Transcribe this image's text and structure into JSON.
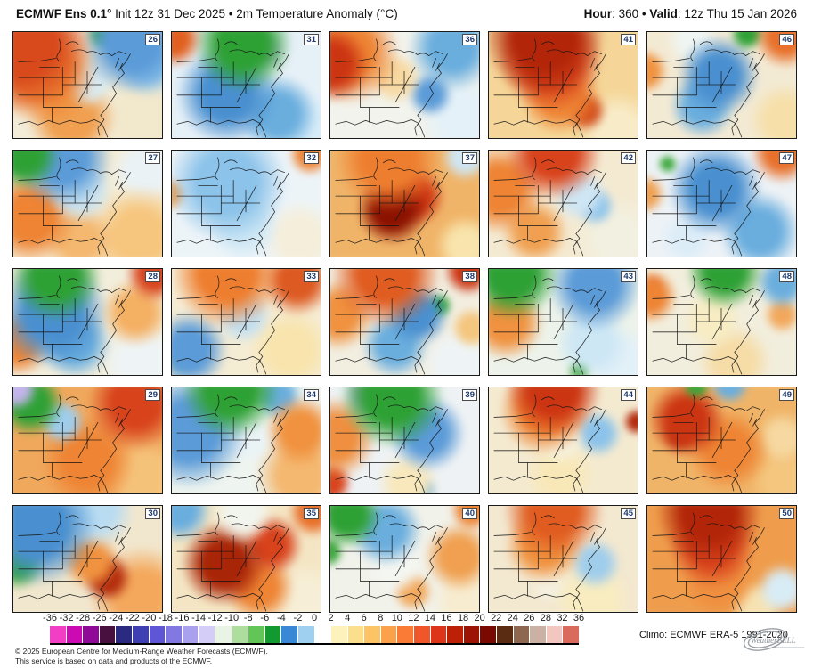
{
  "header": {
    "title_bold": "ECMWF Ens 0.1°",
    "title_rest": " Init 12z 31 Dec 2025 • 2m Temperature Anomaly (°C)",
    "hour_label": "Hour",
    "hour_sep1": ": ",
    "hour_value": "360",
    "bullet": " • ",
    "valid_label": "Valid",
    "valid_sep": ": ",
    "valid_value": "12z Thu 15 Jan 2026"
  },
  "members": [
    {
      "num": "26",
      "base": "#f2ecd8",
      "blobs": [
        [
          8,
          12,
          40,
          "#d8491c"
        ],
        [
          22,
          38,
          38,
          "#ee8434"
        ],
        [
          78,
          14,
          32,
          "#5b9bd8"
        ],
        [
          60,
          6,
          12,
          "#2ea135"
        ],
        [
          88,
          30,
          22,
          "#8cc3ea"
        ],
        [
          50,
          48,
          26,
          "#d9ecf4"
        ],
        [
          40,
          78,
          34,
          "#f0a050"
        ],
        [
          86,
          78,
          30,
          "#f2e8cc"
        ]
      ]
    },
    {
      "num": "31",
      "base": "#e6f0f7",
      "blobs": [
        [
          4,
          10,
          16,
          "#e2601f"
        ],
        [
          48,
          14,
          38,
          "#2ea135"
        ],
        [
          62,
          20,
          14,
          "#c3b4ec"
        ],
        [
          38,
          58,
          42,
          "#4a90d0"
        ],
        [
          70,
          75,
          28,
          "#6aaede"
        ],
        [
          86,
          88,
          24,
          "#d7ecf8"
        ]
      ]
    },
    {
      "num": "36",
      "base": "#f2f3ec",
      "blobs": [
        [
          4,
          32,
          22,
          "#cc3512"
        ],
        [
          14,
          22,
          32,
          "#ee8434"
        ],
        [
          44,
          44,
          24,
          "#f7d9a2"
        ],
        [
          80,
          18,
          28,
          "#6aaede"
        ],
        [
          66,
          58,
          18,
          "#5b9bd8"
        ],
        [
          88,
          80,
          28,
          "#e4f1f8"
        ]
      ]
    },
    {
      "num": "41",
      "base": "#f5d698",
      "blobs": [
        [
          38,
          8,
          42,
          "#b22508"
        ],
        [
          42,
          28,
          42,
          "#d8431c"
        ],
        [
          48,
          58,
          38,
          "#ee8434"
        ],
        [
          64,
          72,
          16,
          "#d04a1a"
        ],
        [
          84,
          90,
          24,
          "#f8ecc8"
        ]
      ]
    },
    {
      "num": "46",
      "base": "#f3ead4",
      "blobs": [
        [
          90,
          8,
          18,
          "#e8702a"
        ],
        [
          2,
          38,
          13,
          "#f0923f"
        ],
        [
          66,
          6,
          11,
          "#2ea135"
        ],
        [
          48,
          42,
          38,
          "#4a90d0"
        ],
        [
          38,
          68,
          26,
          "#6aaede"
        ],
        [
          90,
          80,
          22,
          "#f6dfa8"
        ],
        [
          32,
          12,
          18,
          "#eff5f2"
        ]
      ]
    },
    {
      "num": "27",
      "base": "#f5ecd4",
      "blobs": [
        [
          10,
          8,
          20,
          "#2ea135"
        ],
        [
          34,
          10,
          34,
          "#5b9bd8"
        ],
        [
          45,
          38,
          30,
          "#c8e2f0"
        ],
        [
          14,
          62,
          30,
          "#ee8434"
        ],
        [
          45,
          82,
          28,
          "#f4b870"
        ],
        [
          82,
          78,
          32,
          "#f6c67e"
        ],
        [
          86,
          22,
          22,
          "#eaf2f6"
        ]
      ]
    },
    {
      "num": "32",
      "base": "#edf4f8",
      "blobs": [
        [
          38,
          32,
          48,
          "#8cc3ea"
        ],
        [
          48,
          68,
          32,
          "#cfe8f5"
        ],
        [
          90,
          8,
          12,
          "#ee8434"
        ],
        [
          2,
          42,
          10,
          "#f0a050"
        ],
        [
          84,
          80,
          24,
          "#f5eeda"
        ]
      ]
    },
    {
      "num": "37",
      "base": "#f0b468",
      "blobs": [
        [
          40,
          12,
          38,
          "#ee7e2f"
        ],
        [
          42,
          55,
          32,
          "#8c1200"
        ],
        [
          56,
          44,
          28,
          "#cc3512"
        ],
        [
          88,
          10,
          14,
          "#cfe6f4"
        ],
        [
          88,
          86,
          18,
          "#f8e4ac"
        ]
      ]
    },
    {
      "num": "42",
      "base": "#f4ead2",
      "blobs": [
        [
          44,
          6,
          34,
          "#d8431c"
        ],
        [
          10,
          38,
          28,
          "#ee8434"
        ],
        [
          60,
          42,
          24,
          "#cfe6f4"
        ],
        [
          70,
          52,
          16,
          "#8cc3ea"
        ],
        [
          32,
          74,
          24,
          "#f0a050"
        ],
        [
          84,
          80,
          26,
          "#f2f0e0"
        ]
      ]
    },
    {
      "num": "47",
      "base": "#edf2f6",
      "blobs": [
        [
          88,
          6,
          18,
          "#e8702a"
        ],
        [
          2,
          42,
          12,
          "#f0a050"
        ],
        [
          46,
          38,
          42,
          "#4a90d0"
        ],
        [
          74,
          74,
          28,
          "#6aaede"
        ],
        [
          16,
          16,
          6,
          "#3aa73a"
        ],
        [
          28,
          80,
          18,
          "#dcedf8"
        ]
      ]
    },
    {
      "num": "28",
      "base": "#f2eedc",
      "blobs": [
        [
          30,
          10,
          30,
          "#2ea135"
        ],
        [
          28,
          42,
          42,
          "#4a90d0"
        ],
        [
          42,
          68,
          30,
          "#6aaede"
        ],
        [
          92,
          8,
          16,
          "#d8431c"
        ],
        [
          6,
          68,
          20,
          "#ee8434"
        ],
        [
          80,
          42,
          24,
          "#f4b063"
        ],
        [
          84,
          85,
          26,
          "#eef4f6"
        ]
      ]
    },
    {
      "num": "33",
      "base": "#f5ecd4",
      "blobs": [
        [
          38,
          8,
          38,
          "#ee7e2f"
        ],
        [
          82,
          14,
          22,
          "#dd5a22"
        ],
        [
          48,
          44,
          28,
          "#c2e0f2"
        ],
        [
          14,
          74,
          24,
          "#5b9bd8"
        ],
        [
          10,
          80,
          10,
          "#2ea135"
        ],
        [
          78,
          74,
          28,
          "#f8e4ac"
        ]
      ]
    },
    {
      "num": "38",
      "base": "#f2eee0",
      "blobs": [
        [
          38,
          8,
          38,
          "#e05c20"
        ],
        [
          90,
          6,
          14,
          "#cc3512"
        ],
        [
          8,
          44,
          22,
          "#f0923f"
        ],
        [
          58,
          44,
          28,
          "#4a90d0"
        ],
        [
          72,
          36,
          9,
          "#2ea135"
        ],
        [
          44,
          70,
          28,
          "#6aaede"
        ],
        [
          92,
          55,
          13,
          "#f4c67e"
        ],
        [
          84,
          86,
          24,
          "#eef4f6"
        ]
      ]
    },
    {
      "num": "43",
      "base": "#edf3ea",
      "blobs": [
        [
          18,
          8,
          28,
          "#2ea135"
        ],
        [
          70,
          18,
          32,
          "#5b9bd8"
        ],
        [
          14,
          50,
          26,
          "#f0923f"
        ],
        [
          68,
          68,
          28,
          "#cde7f5"
        ],
        [
          60,
          92,
          8,
          "#3aa73a"
        ],
        [
          88,
          86,
          22,
          "#e2f0f8"
        ]
      ]
    },
    {
      "num": "48",
      "base": "#f2eedd",
      "blobs": [
        [
          52,
          6,
          28,
          "#2ea135"
        ],
        [
          88,
          16,
          16,
          "#6aaede"
        ],
        [
          5,
          28,
          16,
          "#ee8434"
        ],
        [
          7,
          20,
          7,
          "#d8431c"
        ],
        [
          44,
          48,
          28,
          "#f7ecc2"
        ],
        [
          88,
          44,
          12,
          "#f2a85c"
        ],
        [
          58,
          84,
          28,
          "#f6dca6"
        ]
      ]
    },
    {
      "num": "29",
      "base": "#f0a85c",
      "blobs": [
        [
          5,
          6,
          12,
          "#c3b4ec"
        ],
        [
          14,
          18,
          20,
          "#2ea135"
        ],
        [
          34,
          34,
          18,
          "#9fcdec"
        ],
        [
          80,
          18,
          30,
          "#d8431c"
        ],
        [
          50,
          68,
          42,
          "#ee8434"
        ],
        [
          86,
          84,
          28,
          "#f5c27a"
        ]
      ]
    },
    {
      "num": "34",
      "base": "#eef4ef",
      "blobs": [
        [
          40,
          6,
          34,
          "#2ea135"
        ],
        [
          14,
          42,
          38,
          "#5b9bd8"
        ],
        [
          52,
          50,
          24,
          "#eaf3f6"
        ],
        [
          84,
          42,
          24,
          "#f0923f"
        ],
        [
          84,
          80,
          28,
          "#f4b870"
        ],
        [
          70,
          12,
          16,
          "#6aaede"
        ]
      ]
    },
    {
      "num": "39",
      "base": "#eef2f4",
      "blobs": [
        [
          42,
          12,
          38,
          "#2ea135"
        ],
        [
          28,
          10,
          16,
          "#b9a8e8"
        ],
        [
          6,
          48,
          26,
          "#ef8f3f"
        ],
        [
          64,
          44,
          32,
          "#5b9bd8"
        ],
        [
          4,
          86,
          11,
          "#d8431c"
        ],
        [
          52,
          86,
          24,
          "#f8e8bc"
        ],
        [
          62,
          92,
          9,
          "#6aaede"
        ]
      ]
    },
    {
      "num": "44",
      "base": "#f4ead0",
      "blobs": [
        [
          44,
          6,
          34,
          "#cc3512"
        ],
        [
          38,
          24,
          34,
          "#ee8434"
        ],
        [
          48,
          50,
          24,
          "#f6f2e0"
        ],
        [
          72,
          44,
          18,
          "#8cc3ea"
        ],
        [
          48,
          80,
          28,
          "#f8e8b8"
        ],
        [
          96,
          34,
          8,
          "#b22508"
        ]
      ]
    },
    {
      "num": "49",
      "base": "#f0b468",
      "blobs": [
        [
          55,
          2,
          14,
          "#6aaede"
        ],
        [
          34,
          3,
          9,
          "#3aa73a"
        ],
        [
          28,
          32,
          28,
          "#cc3512"
        ],
        [
          24,
          44,
          14,
          "#a92507"
        ],
        [
          54,
          58,
          38,
          "#ee8434"
        ],
        [
          88,
          48,
          18,
          "#f6d8a0"
        ],
        [
          88,
          85,
          20,
          "#f4c67e"
        ]
      ]
    },
    {
      "num": "30",
      "base": "#f1e7ce",
      "blobs": [
        [
          18,
          22,
          38,
          "#4a90d0"
        ],
        [
          6,
          52,
          18,
          "#2ea135"
        ],
        [
          55,
          8,
          28,
          "#b9dcf2"
        ],
        [
          52,
          52,
          28,
          "#f0923f"
        ],
        [
          62,
          66,
          20,
          "#b22a0c"
        ],
        [
          84,
          84,
          32,
          "#f4a85c"
        ],
        [
          3,
          5,
          10,
          "#ee8434"
        ]
      ]
    },
    {
      "num": "35",
      "base": "#f4e6c4",
      "blobs": [
        [
          8,
          8,
          18,
          "#6aaede"
        ],
        [
          48,
          10,
          24,
          "#f2f5ee"
        ],
        [
          36,
          54,
          36,
          "#a92507"
        ],
        [
          66,
          38,
          24,
          "#d8431c"
        ],
        [
          58,
          74,
          28,
          "#ee8434"
        ],
        [
          88,
          85,
          22,
          "#f6eed6"
        ],
        [
          92,
          10,
          14,
          "#e8702a"
        ]
      ]
    },
    {
      "num": "40",
      "base": "#f1f2ea",
      "blobs": [
        [
          14,
          12,
          20,
          "#2ea135"
        ],
        [
          16,
          8,
          9,
          "#c3b4ec"
        ],
        [
          38,
          25,
          28,
          "#6aaede"
        ],
        [
          44,
          55,
          28,
          "#f4f6f1"
        ],
        [
          84,
          48,
          24,
          "#f0a050"
        ],
        [
          55,
          78,
          16,
          "#f2a85c"
        ],
        [
          88,
          86,
          20,
          "#f7ecd0"
        ],
        [
          2,
          44,
          9,
          "#3aa73a"
        ],
        [
          92,
          8,
          12,
          "#ee8434"
        ]
      ]
    },
    {
      "num": "45",
      "base": "#f3e8d0",
      "blobs": [
        [
          44,
          8,
          36,
          "#e05c20"
        ],
        [
          38,
          38,
          32,
          "#f0923f"
        ],
        [
          70,
          54,
          20,
          "#9fcdec"
        ],
        [
          68,
          85,
          28,
          "#f8ecc0"
        ],
        [
          42,
          70,
          18,
          "#f4f0e0"
        ]
      ]
    },
    {
      "num": "50",
      "base": "#ef9d4c",
      "blobs": [
        [
          42,
          10,
          38,
          "#b22508"
        ],
        [
          44,
          38,
          38,
          "#d8431c"
        ],
        [
          48,
          70,
          32,
          "#ef8f3f"
        ],
        [
          88,
          76,
          16,
          "#d8ecf6"
        ],
        [
          72,
          92,
          18,
          "#f6e2b0"
        ]
      ]
    }
  ],
  "colorbar": {
    "ticks": [
      "-36",
      "-32",
      "-28",
      "-26",
      "-24",
      "-22",
      "-20",
      "-18",
      "-16",
      "-14",
      "-12",
      "-10",
      "-8",
      "-6",
      "-4",
      "-2",
      "0",
      "2",
      "4",
      "6",
      "8",
      "10",
      "12",
      "14",
      "16",
      "18",
      "20",
      "22",
      "24",
      "26",
      "28",
      "32",
      "36"
    ],
    "colors": [
      "#f23ec4",
      "#cb0ab4",
      "#8f0a96",
      "#47103f",
      "#2a2a80",
      "#3f3fb4",
      "#5f56d7",
      "#8278e2",
      "#aaa1ee",
      "#d4cdf7",
      "#e9f4e4",
      "#aede9d",
      "#62c657",
      "#129a30",
      "#3a87d6",
      "#9fd0ef",
      "#ffffff",
      "#fdf1bc",
      "#fcdf8d",
      "#fcc465",
      "#fba04b",
      "#f97b35",
      "#f1562a",
      "#dd3517",
      "#bc2108",
      "#9c1404",
      "#7a0a01",
      "#5a2c12",
      "#8d6750",
      "#cbb0a4",
      "#f3c7c0",
      "#d96a5c"
    ]
  },
  "footer": {
    "climo": "Climo: ECMWF ERA-5 1991-2020",
    "copyright_line1": "© 2025 European Centre for Medium-Range Weather Forecasts (ECMWF).",
    "copyright_line2": "This service is based on data and products of the ECMWF.",
    "logo_text": "WeatherBELL"
  }
}
